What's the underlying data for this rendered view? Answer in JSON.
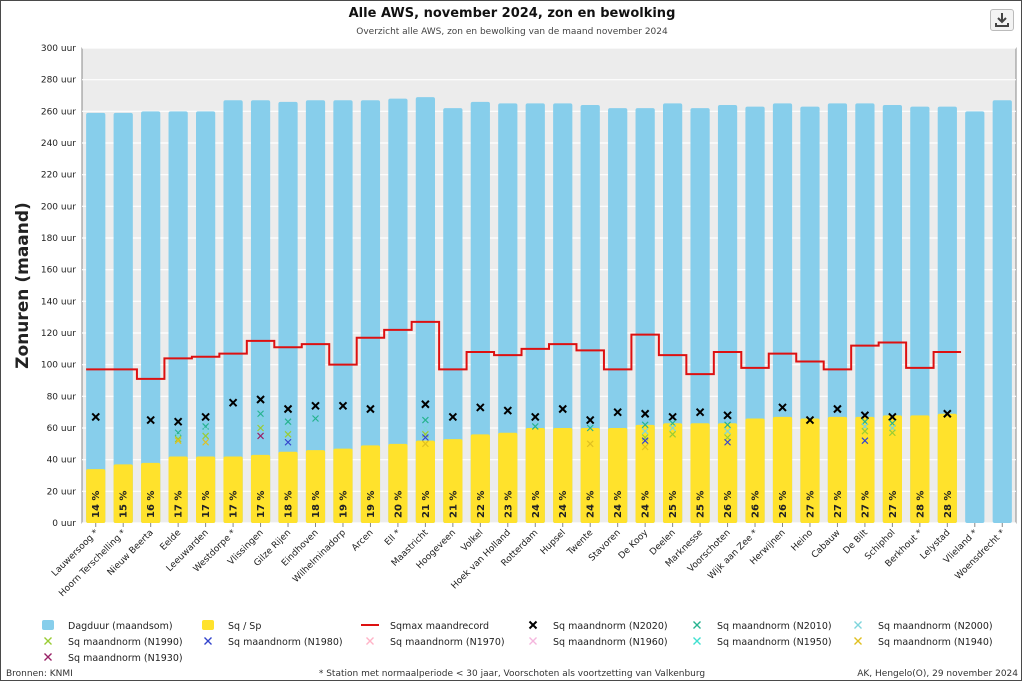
{
  "title": "Alle AWS, november 2024, zon en bewolking",
  "subtitle": "Overzicht alle AWS, zon en bewolking van de maand november 2024",
  "download_icon": "download-icon",
  "footer": {
    "source": "Bronnen: KNMI",
    "note": "* Station met normaalperiode < 30 jaar, Voorschoten als voortzetting van Valkenburg",
    "credit": "AK, Hengelo(O), 29 november 2024"
  },
  "chart_data": {
    "type": "bar",
    "ylabel": "Zonuren (maand)",
    "ylim": [
      0,
      300
    ],
    "ytick_step": 20,
    "ytick_suffix": " uur",
    "grid": true,
    "categories": [
      "Lauwersoog *",
      "Hoorn Terschelling *",
      "Nieuw Beerta",
      "Eelde",
      "Leeuwarden",
      "Westdorpe *",
      "Vlissingen",
      "Gilze Rijen",
      "Eindhoven",
      "Wilhelminadorp",
      "Arcen",
      "Ell *",
      "Maastricht",
      "Hoogeveen",
      "Volkel",
      "Hoek van Holland",
      "Rotterdam",
      "Hupsel",
      "Twente",
      "Stavoren",
      "De Kooy",
      "Deelen",
      "Marknesse",
      "Voorschoten",
      "Wijk aan Zee *",
      "Herwijnen",
      "Heino",
      "Cabauw",
      "De Bilt",
      "Schiphol",
      "Berkhout *",
      "Lelystad",
      "Vlieland *",
      "Woensdrecht *"
    ],
    "series": [
      {
        "name": "Dagduur (maandsom)",
        "color": "#87ceeb",
        "values": [
          259,
          259,
          260,
          260,
          260,
          267,
          267,
          266,
          267,
          267,
          267,
          268,
          269,
          262,
          266,
          265,
          265,
          265,
          264,
          262,
          262,
          265,
          262,
          264,
          263,
          265,
          263,
          265,
          265,
          264,
          263,
          263,
          260,
          267
        ]
      },
      {
        "name": "Sq / Sp",
        "color": "#ffe22c",
        "values": [
          34,
          37,
          38,
          42,
          42,
          42,
          43,
          45,
          46,
          47,
          49,
          50,
          52,
          53,
          56,
          57,
          60,
          60,
          60,
          60,
          62,
          63,
          63,
          63,
          66,
          67,
          66,
          67,
          67,
          68,
          68,
          69,
          null,
          null
        ]
      },
      {
        "name": "Sqmax maandrecord",
        "color": "#dd1111",
        "values": [
          97,
          97,
          91,
          104,
          105,
          107,
          115,
          111,
          113,
          100,
          117,
          122,
          127,
          97,
          108,
          106,
          110,
          113,
          109,
          97,
          119,
          106,
          94,
          108,
          98,
          107,
          102,
          97,
          112,
          114,
          98,
          108,
          null,
          null
        ]
      },
      {
        "name": "Sq maandnorm (N2020)",
        "color": "#000000",
        "values": [
          67,
          null,
          65,
          64,
          67,
          76,
          78,
          72,
          74,
          74,
          72,
          null,
          75,
          67,
          73,
          71,
          67,
          72,
          65,
          70,
          69,
          67,
          70,
          68,
          null,
          73,
          65,
          72,
          68,
          67,
          null,
          69,
          null,
          null
        ]
      },
      {
        "name": "Sq maandnorm (N2010)",
        "color": "#26b38f",
        "values": [
          null,
          null,
          null,
          57,
          61,
          null,
          69,
          64,
          66,
          null,
          null,
          null,
          65,
          null,
          null,
          null,
          61,
          null,
          60,
          null,
          62,
          63,
          null,
          62,
          null,
          null,
          null,
          null,
          64,
          63,
          null,
          null,
          null,
          null
        ]
      },
      {
        "name": "Sq maandnorm (N2000)",
        "color": "#7fd5dc",
        "values": [
          null,
          null,
          null,
          55,
          59,
          null,
          65,
          60,
          null,
          null,
          null,
          null,
          60,
          null,
          null,
          null,
          null,
          null,
          null,
          null,
          58,
          60,
          null,
          58,
          null,
          null,
          null,
          null,
          61,
          60,
          null,
          null,
          null,
          null
        ]
      },
      {
        "name": "Sq maandnorm (N1990)",
        "color": "#99cc33",
        "values": [
          null,
          null,
          null,
          53,
          55,
          null,
          60,
          56,
          null,
          null,
          null,
          null,
          56,
          null,
          null,
          null,
          null,
          null,
          null,
          null,
          54,
          56,
          null,
          54,
          null,
          null,
          null,
          null,
          58,
          57,
          null,
          null,
          null,
          null
        ]
      },
      {
        "name": "Sq maandnorm (N1980)",
        "color": "#3344cc",
        "values": [
          null,
          null,
          null,
          null,
          null,
          null,
          null,
          51,
          null,
          null,
          null,
          null,
          54,
          null,
          null,
          null,
          null,
          null,
          null,
          null,
          52,
          null,
          null,
          51,
          null,
          null,
          null,
          null,
          52,
          null,
          null,
          null,
          null,
          null
        ]
      },
      {
        "name": "Sq maandnorm (N1970)",
        "color": "#ffb3c6",
        "values": [
          null,
          null,
          null,
          null,
          null,
          null,
          null,
          null,
          null,
          null,
          null,
          null,
          null,
          null,
          null,
          null,
          null,
          null,
          null,
          null,
          null,
          null,
          null,
          null,
          null,
          null,
          null,
          null,
          null,
          null,
          null,
          null,
          null,
          null
        ]
      },
      {
        "name": "Sq maandnorm (N1960)",
        "color": "#f4b6dd",
        "values": [
          null,
          null,
          null,
          null,
          null,
          null,
          null,
          null,
          null,
          null,
          null,
          null,
          null,
          null,
          null,
          null,
          null,
          null,
          null,
          null,
          null,
          null,
          null,
          null,
          null,
          null,
          null,
          null,
          null,
          null,
          null,
          null,
          null,
          null
        ]
      },
      {
        "name": "Sq maandnorm (N1950)",
        "color": "#40e0d0",
        "values": [
          null,
          null,
          null,
          null,
          null,
          null,
          null,
          null,
          null,
          null,
          null,
          null,
          null,
          null,
          null,
          null,
          null,
          null,
          null,
          null,
          null,
          null,
          null,
          null,
          null,
          null,
          null,
          null,
          null,
          null,
          null,
          null,
          null,
          null
        ]
      },
      {
        "name": "Sq maandnorm (N1940)",
        "color": "#e0c020",
        "values": [
          null,
          null,
          null,
          52,
          51,
          null,
          null,
          null,
          null,
          null,
          null,
          null,
          50,
          null,
          null,
          null,
          null,
          null,
          50,
          null,
          48,
          null,
          null,
          null,
          null,
          null,
          null,
          null,
          null,
          null,
          null,
          null,
          null,
          null
        ]
      },
      {
        "name": "Sq maandnorm (N1930)",
        "color": "#992266",
        "values": [
          null,
          null,
          null,
          null,
          null,
          null,
          55,
          null,
          null,
          null,
          null,
          null,
          null,
          null,
          null,
          null,
          null,
          null,
          null,
          null,
          null,
          null,
          null,
          null,
          null,
          null,
          null,
          null,
          null,
          null,
          null,
          null,
          null,
          null
        ]
      }
    ],
    "percent_labels": [
      "14 %",
      "15 %",
      "16 %",
      "17 %",
      "17 %",
      "17 %",
      "17 %",
      "18 %",
      "18 %",
      "19 %",
      "19 %",
      "20 %",
      "21 %",
      "21 %",
      "22 %",
      "23 %",
      "24 %",
      "24 %",
      "24 %",
      "24 %",
      "24 %",
      "25 %",
      "25 %",
      "26 %",
      "26 %",
      "26 %",
      "27 %",
      "27 %",
      "27 %",
      "27 %",
      "28 %",
      "28 %",
      null,
      null
    ]
  }
}
